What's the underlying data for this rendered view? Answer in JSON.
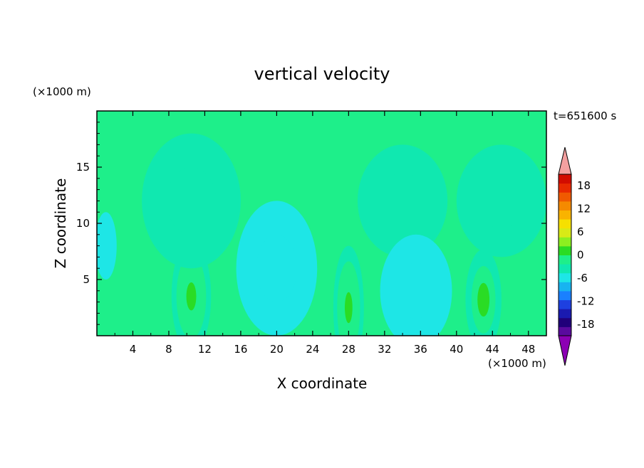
{
  "chart_data": {
    "type": "heatmap",
    "title": "vertical velocity",
    "xlabel": "X coordinate",
    "ylabel": "Z coordinate",
    "x_unit": "(×1000 m)",
    "y_unit": "(×1000 m)",
    "time_label": "t=651600 s",
    "xlim": [
      0,
      50
    ],
    "ylim": [
      0,
      20
    ],
    "x_ticks": [
      4,
      8,
      12,
      16,
      20,
      24,
      28,
      32,
      36,
      40,
      44,
      48
    ],
    "y_ticks": [
      5,
      10,
      15
    ],
    "colorbar": {
      "labels": [
        "18",
        "12",
        "6",
        "0",
        "-6",
        "-12",
        "-18"
      ],
      "label_values": [
        18,
        12,
        6,
        0,
        -6,
        -12,
        -18
      ],
      "range": [
        -21,
        21
      ],
      "step": 3,
      "colors": [
        "#5a0a9e",
        "#20007a",
        "#1a1ab0",
        "#1e40e0",
        "#1a80ff",
        "#18b4f0",
        "#1ee6e6",
        "#10e8b0",
        "#1eef8a",
        "#2adc24",
        "#8cef20",
        "#d8ea16",
        "#f6e000",
        "#f9b300",
        "#f58a00",
        "#f05a00",
        "#e82a00",
        "#d20c00"
      ],
      "under_color": "#8c00b4",
      "over_color": "#f4a0a0"
    },
    "background_color": "#1eef8a",
    "features": [
      {
        "x": 10.5,
        "z": 3.5,
        "rx": 2.2,
        "rz": 5.0,
        "value": 8
      },
      {
        "x": 28,
        "z": 2.5,
        "rx": 1.7,
        "rz": 5.5,
        "value": 8
      },
      {
        "x": 43,
        "z": 3.2,
        "rx": 2.0,
        "rz": 4.5,
        "value": 6
      },
      {
        "x": 10.5,
        "z": 12,
        "rx": 5.5,
        "rz": 6.0,
        "value": 1.5
      },
      {
        "x": 34,
        "z": 12,
        "rx": 5.0,
        "rz": 5.0,
        "value": 1.5
      },
      {
        "x": 45,
        "z": 12,
        "rx": 5.0,
        "rz": 5.0,
        "value": 1.5
      },
      {
        "x": 20,
        "z": 6,
        "rx": 4.5,
        "rz": 6.0,
        "value": -2
      },
      {
        "x": 35.5,
        "z": 4,
        "rx": 4.0,
        "rz": 5.0,
        "value": -2
      },
      {
        "x": 1,
        "z": 8,
        "rx": 1.2,
        "rz": 3.0,
        "value": -1.5
      }
    ]
  }
}
